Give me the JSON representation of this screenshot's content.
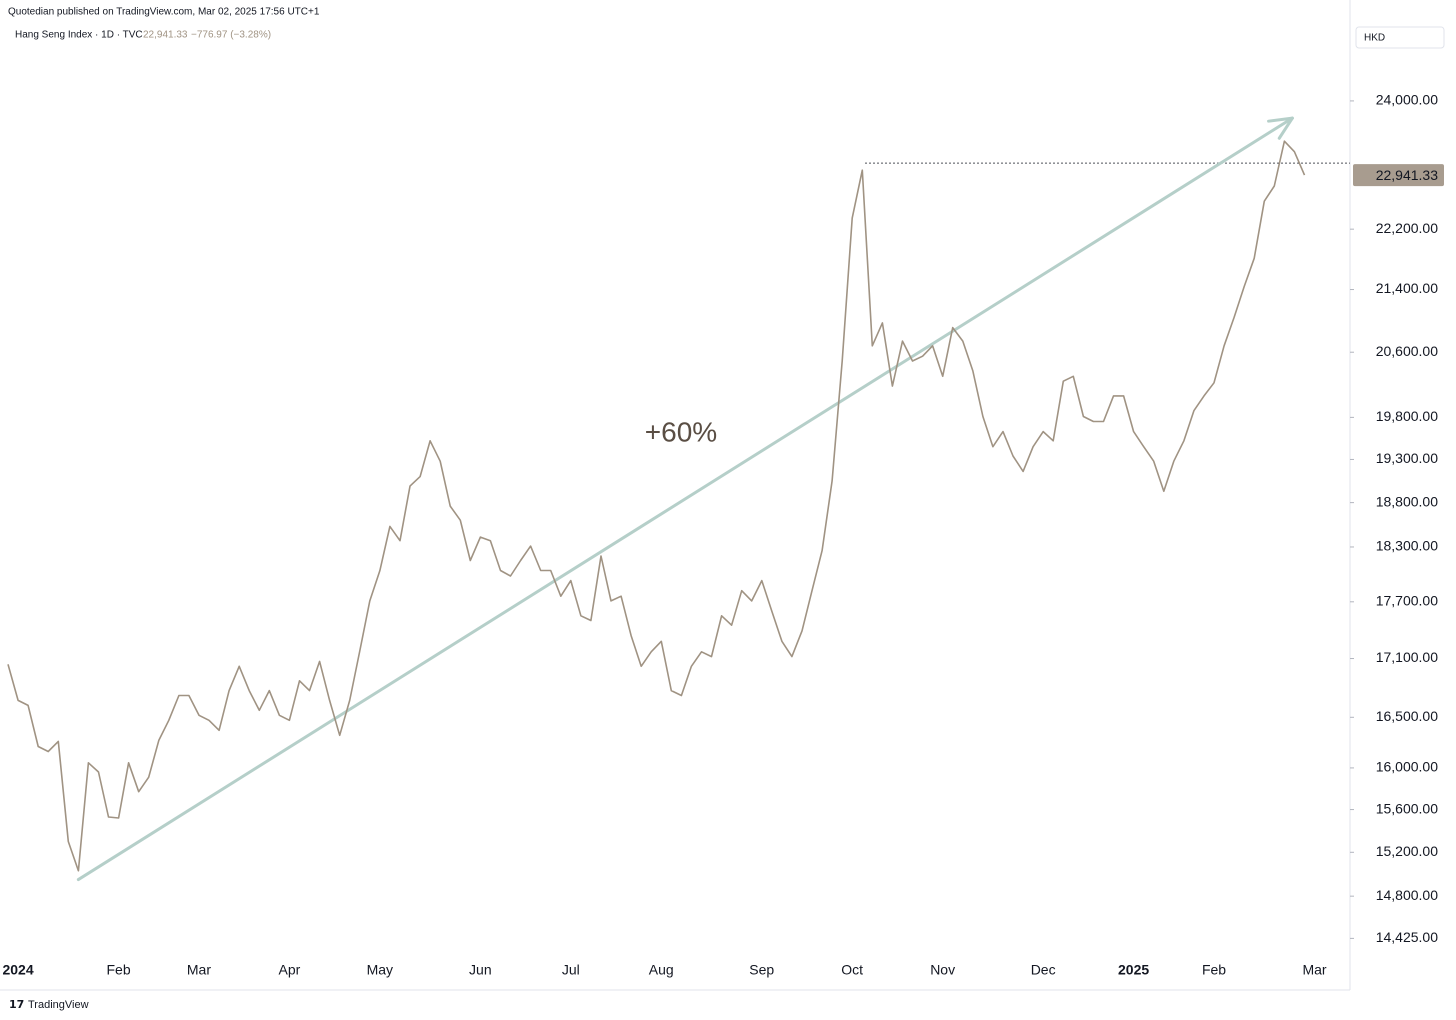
{
  "chart_data": {
    "type": "line",
    "published": "Quotedian published on TradingView.com, Mar 02, 2025 17:56 UTC+1",
    "title": "Hang Seng Index · 1D · TVC",
    "legend_price": "22,941.33",
    "legend_change": "−776.97 (−3.28%)",
    "currency": "HKD",
    "annotation": "+60%",
    "last_price_label": "22,941.33",
    "reference_line": 23110,
    "trend_arrow": {
      "start": 14950,
      "end": 23750
    },
    "footer": "TradingView",
    "log_scale": true,
    "ylim": [
      14280,
      25210
    ],
    "yticks": [
      {
        "value": 14425,
        "label": "14,425.00"
      },
      {
        "value": 14800,
        "label": "14,800.00"
      },
      {
        "value": 15200,
        "label": "15,200.00"
      },
      {
        "value": 15600,
        "label": "15,600.00"
      },
      {
        "value": 16000,
        "label": "16,000.00"
      },
      {
        "value": 16500,
        "label": "16,500.00"
      },
      {
        "value": 17100,
        "label": "17,100.00"
      },
      {
        "value": 17700,
        "label": "17,700.00"
      },
      {
        "value": 18300,
        "label": "18,300.00"
      },
      {
        "value": 18800,
        "label": "18,800.00"
      },
      {
        "value": 19300,
        "label": "19,300.00"
      },
      {
        "value": 19800,
        "label": "19,800.00"
      },
      {
        "value": 20600,
        "label": "20,600.00"
      },
      {
        "value": 21400,
        "label": "21,400.00"
      },
      {
        "value": 22200,
        "label": "22,200.00"
      },
      {
        "value": 24000,
        "label": "24,000.00"
      }
    ],
    "categories": [
      null,
      "2024",
      null,
      null,
      null,
      null,
      null,
      null,
      null,
      null,
      null,
      "Feb",
      null,
      null,
      null,
      null,
      null,
      null,
      null,
      "Mar",
      null,
      null,
      null,
      null,
      null,
      null,
      null,
      null,
      "Apr",
      null,
      null,
      null,
      null,
      null,
      null,
      null,
      null,
      "May",
      null,
      null,
      null,
      null,
      null,
      null,
      null,
      null,
      null,
      "Jun",
      null,
      null,
      null,
      null,
      null,
      null,
      null,
      null,
      "Jul",
      null,
      null,
      null,
      null,
      null,
      null,
      null,
      null,
      "Aug",
      null,
      null,
      null,
      null,
      null,
      null,
      null,
      null,
      null,
      "Sep",
      null,
      null,
      null,
      null,
      null,
      null,
      null,
      null,
      "Oct",
      null,
      null,
      null,
      null,
      null,
      null,
      null,
      null,
      "Nov",
      null,
      null,
      null,
      null,
      null,
      null,
      null,
      null,
      null,
      "Dec",
      null,
      null,
      null,
      null,
      null,
      null,
      null,
      null,
      "2025",
      null,
      null,
      null,
      null,
      null,
      null,
      null,
      "Feb",
      null,
      null,
      null,
      null,
      null,
      null,
      null,
      null,
      null,
      "Mar"
    ],
    "series": [
      {
        "name": "Hang Seng Index",
        "color": "#a09383",
        "values": [
          17040,
          16670,
          16620,
          16210,
          16160,
          16260,
          15300,
          15030,
          16050,
          15960,
          15530,
          15520,
          16050,
          15770,
          15910,
          16270,
          16470,
          16720,
          16720,
          16520,
          16470,
          16370,
          16770,
          17020,
          16770,
          16570,
          16770,
          16520,
          16470,
          16870,
          16770,
          17070,
          16670,
          16320,
          16670,
          17180,
          17710,
          18040,
          18530,
          18370,
          18990,
          19100,
          19520,
          19280,
          18760,
          18600,
          18150,
          18410,
          18370,
          18040,
          17980,
          18150,
          18310,
          18040,
          18040,
          17760,
          17930,
          17550,
          17500,
          18200,
          17710,
          17760,
          17340,
          17020,
          17170,
          17280,
          16770,
          16720,
          17020,
          17170,
          17120,
          17550,
          17450,
          17820,
          17710,
          17930,
          17600,
          17280,
          17120,
          17390,
          17820,
          18260,
          19050,
          20490,
          22350,
          23010,
          20680,
          20970,
          20180,
          20740,
          20490,
          20550,
          20680,
          20300,
          20910,
          20740,
          20370,
          19810,
          19450,
          19630,
          19340,
          19160,
          19450,
          19630,
          19520,
          20240,
          20300,
          19810,
          19750,
          19750,
          20060,
          20060,
          19630,
          19450,
          19280,
          18930,
          19280,
          19520,
          19880,
          20060,
          20220,
          20680,
          21040,
          21440,
          21810,
          22580,
          22790,
          23420,
          23270,
          22941.33,
          null
        ]
      }
    ]
  }
}
